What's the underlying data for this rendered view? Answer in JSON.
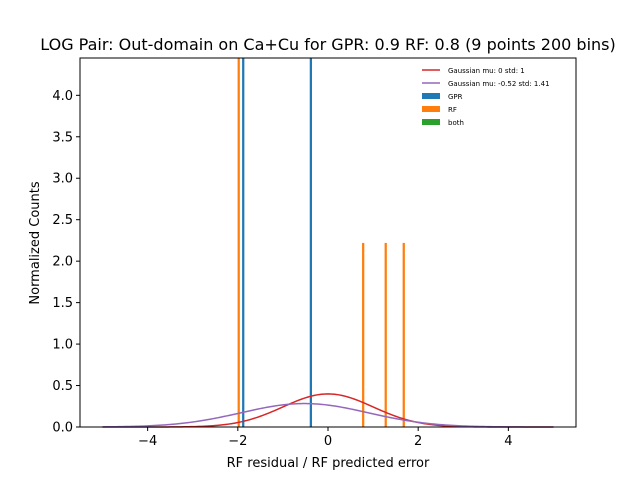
{
  "chart_data": {
    "type": "histogram",
    "title": "LOG Pair: Out-domain on Ca+Cu for GPR: 0.9 RF: 0.8 (9 points 200 bins)",
    "xlabel": "RF residual / RF predicted error",
    "ylabel": "Normalized Counts",
    "xlim": [
      -5.5,
      5.5
    ],
    "ylim": [
      0,
      4.45
    ],
    "x_ticks": [
      -4,
      -2,
      0,
      2,
      4
    ],
    "x_tick_labels": [
      "−4",
      "−2",
      "0",
      "2",
      "4"
    ],
    "y_ticks": [
      0,
      0.5,
      1.0,
      1.5,
      2.0,
      2.5,
      3.0,
      3.5,
      4.0
    ],
    "y_tick_labels": [
      "0.0",
      "0.5",
      "1.0",
      "1.5",
      "2.0",
      "2.5",
      "3.0",
      "3.5",
      "4.0"
    ],
    "bin_width": 0.05,
    "legend_position": "top-right",
    "series": [
      {
        "name": "GPR",
        "kind": "hist",
        "color": "#1f77b4",
        "bars": [
          {
            "x": -1.88,
            "height": 4.45
          },
          {
            "x": -0.38,
            "height": 4.45
          }
        ]
      },
      {
        "name": "RF",
        "kind": "hist",
        "color": "#ff7f0e",
        "bars": [
          {
            "x": -1.98,
            "height": 4.45
          },
          {
            "x": 0.78,
            "height": 2.22
          },
          {
            "x": 1.28,
            "height": 2.22
          },
          {
            "x": 1.68,
            "height": 2.22
          }
        ]
      },
      {
        "name": "both",
        "kind": "hist",
        "color": "#2ca02c",
        "bars": []
      },
      {
        "name": "Gaussian mu: 0 std: 1",
        "kind": "curve",
        "color": "#d62728",
        "mu": 0,
        "std": 1,
        "range": [
          -5,
          5
        ]
      },
      {
        "name": "Gaussian mu: -0.52 std: 1.41",
        "kind": "curve",
        "color": "#9467bd",
        "mu": -0.52,
        "std": 1.41,
        "range": [
          -5,
          5
        ]
      }
    ]
  }
}
